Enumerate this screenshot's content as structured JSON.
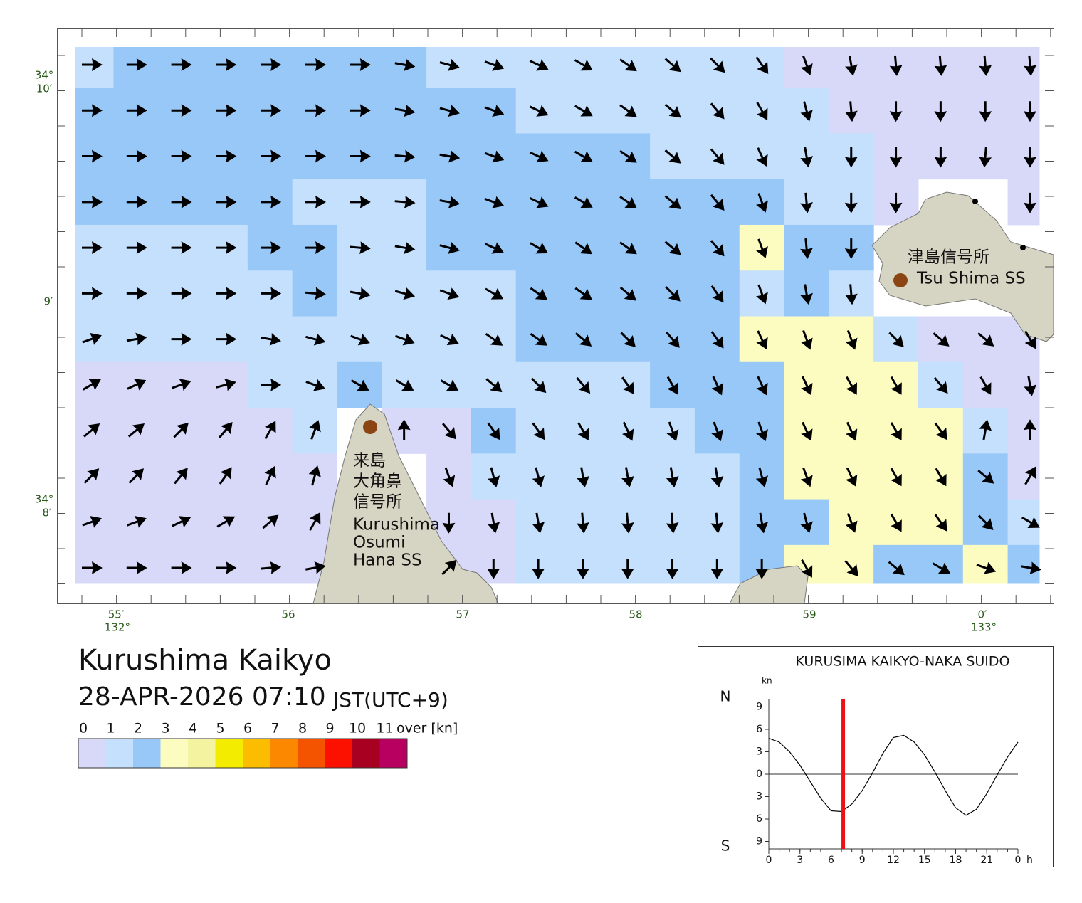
{
  "map": {
    "x_labels": [
      "55′",
      "56",
      "57",
      "58",
      "59",
      "0′"
    ],
    "x_degree_labels": [
      "132°",
      "133°"
    ],
    "y_labels": [
      {
        "deg": "34°",
        "min": "10′"
      },
      {
        "min": "9′"
      },
      {
        "deg": "34°",
        "min": "8′"
      }
    ],
    "places": {
      "tsushima": [
        "津島信号所",
        "Tsu Shima SS"
      ],
      "kurushima": [
        "来島",
        "大角鼻",
        "信号所",
        "Kurushima",
        "Osumi",
        "Hana SS"
      ]
    },
    "current_field": {
      "angle_deg": [
        [
          0,
          0,
          0,
          0,
          0,
          0,
          0,
          10,
          15,
          20,
          25,
          30,
          35,
          40,
          45,
          55,
          70,
          80,
          85,
          85,
          85,
          85
        ],
        [
          0,
          0,
          0,
          0,
          0,
          0,
          0,
          10,
          15,
          20,
          25,
          30,
          35,
          40,
          50,
          60,
          75,
          85,
          90,
          90,
          90,
          90
        ],
        [
          0,
          0,
          0,
          0,
          0,
          0,
          0,
          5,
          10,
          20,
          25,
          30,
          35,
          40,
          50,
          65,
          80,
          90,
          90,
          90,
          95,
          90
        ],
        [
          0,
          0,
          0,
          0,
          0,
          0,
          0,
          5,
          10,
          20,
          25,
          30,
          35,
          40,
          50,
          70,
          85,
          90,
          90,
          null,
          null,
          90
        ],
        [
          0,
          0,
          0,
          0,
          0,
          0,
          5,
          10,
          15,
          25,
          30,
          35,
          35,
          40,
          50,
          70,
          85,
          90,
          null,
          null,
          null,
          null
        ],
        [
          0,
          0,
          0,
          0,
          0,
          5,
          10,
          15,
          20,
          30,
          35,
          35,
          40,
          45,
          55,
          70,
          80,
          85,
          null,
          null,
          null,
          null
        ],
        [
          -20,
          -10,
          0,
          0,
          10,
          15,
          20,
          20,
          25,
          35,
          35,
          40,
          45,
          50,
          55,
          65,
          70,
          70,
          45,
          40,
          40,
          60
        ],
        [
          -30,
          -25,
          -20,
          -15,
          0,
          20,
          30,
          30,
          30,
          40,
          45,
          50,
          55,
          60,
          65,
          65,
          65,
          60,
          60,
          50,
          60,
          80
        ],
        [
          -40,
          -40,
          -45,
          -50,
          -60,
          -70,
          null,
          -90,
          50,
          55,
          55,
          60,
          65,
          70,
          70,
          70,
          65,
          65,
          60,
          55,
          -80,
          -90
        ],
        [
          -45,
          -45,
          -50,
          -55,
          -65,
          -75,
          null,
          null,
          70,
          75,
          75,
          80,
          80,
          80,
          80,
          75,
          70,
          65,
          60,
          60,
          40,
          -60
        ],
        [
          -20,
          -20,
          -25,
          -30,
          -40,
          -60,
          null,
          null,
          90,
          80,
          80,
          85,
          85,
          85,
          85,
          80,
          75,
          70,
          60,
          55,
          45,
          30
        ],
        [
          0,
          0,
          0,
          0,
          -5,
          -10,
          null,
          null,
          -45,
          90,
          90,
          90,
          90,
          90,
          90,
          90,
          60,
          50,
          40,
          30,
          20,
          10
        ]
      ],
      "speed_class": [
        [
          1,
          2,
          2,
          2,
          2,
          2,
          2,
          2,
          1,
          1,
          1,
          1,
          1,
          1,
          1,
          1,
          0,
          0,
          0,
          0,
          0,
          0
        ],
        [
          2,
          2,
          2,
          2,
          2,
          2,
          2,
          2,
          2,
          2,
          1,
          1,
          1,
          1,
          1,
          1,
          1,
          0,
          0,
          0,
          0,
          0
        ],
        [
          2,
          2,
          2,
          2,
          2,
          2,
          2,
          2,
          2,
          2,
          2,
          2,
          2,
          1,
          1,
          1,
          1,
          1,
          0,
          0,
          0,
          0
        ],
        [
          2,
          2,
          2,
          2,
          2,
          1,
          1,
          1,
          2,
          2,
          2,
          2,
          2,
          2,
          2,
          2,
          1,
          1,
          0,
          null,
          null,
          0
        ],
        [
          1,
          1,
          1,
          1,
          2,
          2,
          1,
          1,
          2,
          2,
          2,
          2,
          2,
          2,
          2,
          3,
          2,
          2,
          null,
          null,
          null,
          null
        ],
        [
          1,
          1,
          1,
          1,
          1,
          2,
          1,
          1,
          1,
          1,
          2,
          2,
          2,
          2,
          2,
          1,
          2,
          1,
          null,
          null,
          null,
          null
        ],
        [
          1,
          1,
          1,
          1,
          1,
          1,
          1,
          1,
          1,
          1,
          2,
          2,
          2,
          2,
          2,
          3,
          3,
          3,
          1,
          0,
          0,
          0
        ],
        [
          0,
          0,
          0,
          0,
          1,
          1,
          2,
          1,
          1,
          1,
          1,
          1,
          1,
          2,
          2,
          2,
          3,
          3,
          3,
          1,
          0,
          0
        ],
        [
          0,
          0,
          0,
          0,
          0,
          1,
          null,
          0,
          0,
          2,
          1,
          1,
          1,
          1,
          2,
          2,
          3,
          3,
          3,
          3,
          1,
          0
        ],
        [
          0,
          0,
          0,
          0,
          0,
          0,
          null,
          null,
          0,
          1,
          1,
          1,
          1,
          1,
          1,
          2,
          3,
          3,
          3,
          3,
          2,
          0
        ],
        [
          0,
          0,
          0,
          0,
          0,
          0,
          null,
          null,
          0,
          0,
          1,
          1,
          1,
          1,
          1,
          2,
          2,
          3,
          3,
          3,
          2,
          1
        ],
        [
          0,
          0,
          0,
          0,
          0,
          0,
          null,
          null,
          0,
          0,
          1,
          1,
          1,
          1,
          1,
          2,
          3,
          3,
          2,
          2,
          3,
          2
        ]
      ]
    }
  },
  "header": {
    "title": "Kurushima Kaikyo",
    "datetime": "28-APR-2026 07:10",
    "timezone": "JST(UTC+9)"
  },
  "legend": {
    "labels": [
      0,
      1,
      2,
      3,
      4,
      5,
      6,
      7,
      8,
      9,
      10,
      11
    ],
    "unit": "over [kn]",
    "colors": [
      "#d8d8f8",
      "#c4e0fc",
      "#98c8f8",
      "#fcfcc0",
      "#f4f4a0",
      "#f4ec00",
      "#fcbc00",
      "#fc8800",
      "#f45400",
      "#fc1000",
      "#a80020",
      "#b80060"
    ]
  },
  "tide_chart": {
    "type": "line",
    "title": "KURUSIMA KAIKYO-NAKA SUIDO",
    "y_unit": "kn",
    "x_unit": "h",
    "north": "N",
    "south": "S",
    "x": [
      0,
      1,
      2,
      3,
      4,
      5,
      6,
      7,
      8,
      9,
      10,
      11,
      12,
      13,
      14,
      15,
      16,
      17,
      18,
      19,
      20,
      21,
      22,
      23,
      24
    ],
    "values": [
      4.8,
      4.3,
      3.0,
      1.2,
      -1.0,
      -3.2,
      -4.9,
      -5.0,
      -4.0,
      -2.2,
      0.2,
      2.8,
      4.9,
      5.2,
      4.3,
      2.6,
      0.3,
      -2.2,
      -4.5,
      -5.5,
      -4.7,
      -2.6,
      -0.1,
      2.3,
      4.3
    ],
    "color": "#000000",
    "now": 7.17,
    "now_color": "#ee1111",
    "xlim": [
      0,
      24
    ],
    "ylim": [
      -10,
      10
    ],
    "xticks": [
      0,
      3,
      6,
      9,
      12,
      15,
      18,
      21,
      {
        "value": 24,
        "label": "0"
      }
    ],
    "yticks": [
      {
        "value": 9,
        "label": "9"
      },
      {
        "value": 6,
        "label": "6"
      },
      {
        "value": 3,
        "label": "3"
      },
      0,
      {
        "value": -3,
        "label": "3"
      },
      {
        "value": -6,
        "label": "6"
      },
      {
        "value": -9,
        "label": "9"
      }
    ]
  }
}
